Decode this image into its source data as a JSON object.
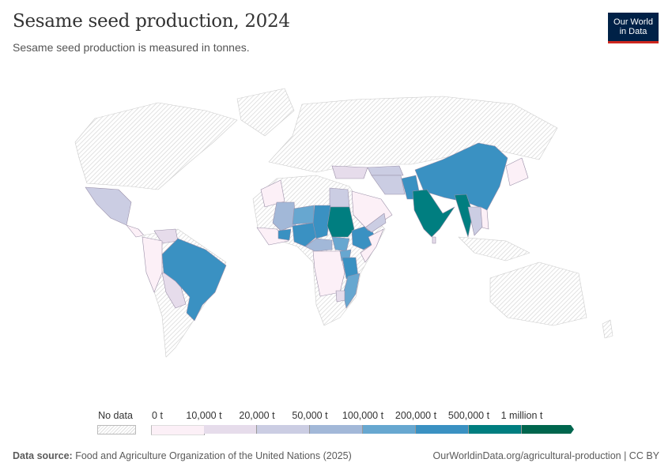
{
  "header": {
    "title": "Sesame seed production, 2024",
    "subtitle": "Sesame seed production is measured in tonnes.",
    "logo_line1": "Our World",
    "logo_line2": "in Data"
  },
  "legend": {
    "no_data_label": "No data",
    "tick_labels": [
      "0 t",
      "10,000 t",
      "20,000 t",
      "50,000 t",
      "100,000 t",
      "200,000 t",
      "500,000 t",
      "1 million t"
    ],
    "bin_colors": [
      "#fcf0f7",
      "#e6dceb",
      "#cbcde3",
      "#a2b8d8",
      "#67a7d0",
      "#3a91c2",
      "#007e80",
      "#00664e"
    ],
    "no_data_color": "#e0e0e0"
  },
  "footer": {
    "source_label": "Data source:",
    "source_text": "Food and Agriculture Organization of the United Nations (2025)",
    "url": "OurWorldinData.org/agricultural-production | CC BY"
  }
}
